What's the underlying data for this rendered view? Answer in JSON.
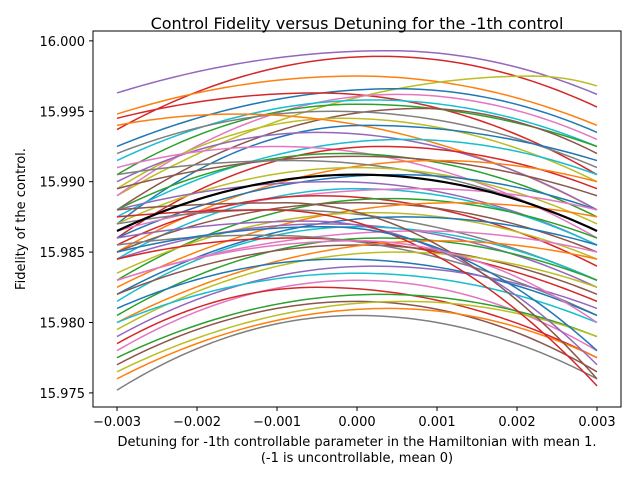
{
  "chart_data": {
    "type": "line",
    "title": "Control Fidelity versus Detuning for the -1th control",
    "xlabel_line1": "Detuning for -1th controllable parameter in the Hamiltonian with mean 1.",
    "xlabel_line2": "(-1 is uncontrollable, mean 0)",
    "ylabel": "Fidelity of the control.",
    "xlim": [
      -0.0033,
      0.0033
    ],
    "ylim": [
      15.974,
      16.0007
    ],
    "x_ticks": [
      -0.003,
      -0.002,
      -0.001,
      0.0,
      0.001,
      0.002,
      0.003
    ],
    "x_tick_labels": [
      "−0.003",
      "−0.002",
      "−0.001",
      "0.000",
      "0.001",
      "0.002",
      "0.003"
    ],
    "y_ticks": [
      15.975,
      15.98,
      15.985,
      15.99,
      15.995,
      16.0
    ],
    "y_tick_labels": [
      "15.975",
      "15.980",
      "15.985",
      "15.990",
      "15.995",
      "16.000"
    ],
    "x_domain": [
      -0.003,
      0.003
    ],
    "grid": false,
    "mean_series": {
      "y_left": 15.9865,
      "peak_x": 0.0,
      "peak_y": 15.9905,
      "y_right": 15.9865,
      "color": "#000000"
    },
    "series": [
      {
        "y_left": 15.9963,
        "peak_x": 0.0004,
        "peak_y": 15.9993,
        "y_right": 15.9962,
        "color": "#9467bd"
      },
      {
        "y_left": 15.9937,
        "peak_x": 0.0003,
        "peak_y": 15.9989,
        "y_right": 15.9953,
        "color": "#d62728"
      },
      {
        "y_left": 15.9948,
        "peak_x": 0.0,
        "peak_y": 15.9975,
        "y_right": 15.994,
        "color": "#ff7f0e"
      },
      {
        "y_left": 15.989,
        "peak_x": 0.0022,
        "peak_y": 15.9975,
        "y_right": 15.9968,
        "color": "#bcbd22"
      },
      {
        "y_left": 15.9925,
        "peak_x": 0.0005,
        "peak_y": 15.9966,
        "y_right": 15.9935,
        "color": "#1f77b4"
      },
      {
        "y_left": 15.9945,
        "peak_x": -0.0005,
        "peak_y": 15.9963,
        "y_right": 15.9905,
        "color": "#d62728"
      },
      {
        "y_left": 15.989,
        "peak_x": 0.0005,
        "peak_y": 15.9962,
        "y_right": 15.993,
        "color": "#e377c2"
      },
      {
        "y_left": 15.9915,
        "peak_x": 0.0002,
        "peak_y": 15.9958,
        "y_right": 15.9925,
        "color": "#17becf"
      },
      {
        "y_left": 15.9905,
        "peak_x": 0.0,
        "peak_y": 15.9955,
        "y_right": 15.9925,
        "color": "#2ca02c"
      },
      {
        "y_left": 15.988,
        "peak_x": 0.0008,
        "peak_y": 15.9952,
        "y_right": 15.992,
        "color": "#8c564b"
      },
      {
        "y_left": 15.992,
        "peak_x": -0.0003,
        "peak_y": 15.995,
        "y_right": 15.991,
        "color": "#7f7f7f"
      },
      {
        "y_left": 15.9895,
        "peak_x": -0.0002,
        "peak_y": 15.9945,
        "y_right": 15.99,
        "color": "#bcbd22"
      },
      {
        "y_left": 15.994,
        "peak_x": -0.0015,
        "peak_y": 15.9948,
        "y_right": 15.988,
        "color": "#ff7f0e"
      },
      {
        "y_left": 15.987,
        "peak_x": 0.0001,
        "peak_y": 15.994,
        "y_right": 15.9915,
        "color": "#1f77b4"
      },
      {
        "y_left": 15.99,
        "peak_x": -0.0005,
        "peak_y": 15.9935,
        "y_right": 15.988,
        "color": "#9467bd"
      },
      {
        "y_left": 15.9875,
        "peak_x": 0.0006,
        "peak_y": 15.993,
        "y_right": 15.9905,
        "color": "#17becf"
      },
      {
        "y_left": 15.991,
        "peak_x": -0.001,
        "peak_y": 15.9925,
        "y_right": 15.986,
        "color": "#e377c2"
      },
      {
        "y_left": 15.986,
        "peak_x": 0.0003,
        "peak_y": 15.9925,
        "y_right": 15.9895,
        "color": "#d62728"
      },
      {
        "y_left": 15.988,
        "peak_x": -0.0002,
        "peak_y": 15.992,
        "y_right": 15.9875,
        "color": "#2ca02c"
      },
      {
        "y_left": 15.9895,
        "peak_x": 0.0,
        "peak_y": 15.9918,
        "y_right": 15.989,
        "color": "#8c564b"
      },
      {
        "y_left": 15.985,
        "peak_x": 0.001,
        "peak_y": 15.9915,
        "y_right": 15.99,
        "color": "#ff7f0e"
      },
      {
        "y_left": 15.9905,
        "peak_x": -0.0008,
        "peak_y": 15.9915,
        "y_right": 15.9865,
        "color": "#7f7f7f"
      },
      {
        "y_left": 15.987,
        "peak_x": 0.0,
        "peak_y": 15.991,
        "y_right": 15.987,
        "color": "#bcbd22"
      },
      {
        "y_left": 15.986,
        "peak_x": 0.0005,
        "peak_y": 15.9905,
        "y_right": 15.988,
        "color": "#1f77b4"
      },
      {
        "y_left": 15.988,
        "peak_x": -0.0003,
        "peak_y": 15.99,
        "y_right": 15.9855,
        "color": "#9467bd"
      },
      {
        "y_left": 15.9845,
        "peak_x": 0.0,
        "peak_y": 15.9895,
        "y_right": 15.9855,
        "color": "#17becf"
      },
      {
        "y_left": 15.9865,
        "peak_x": 0.0008,
        "peak_y": 15.9895,
        "y_right": 15.988,
        "color": "#e377c2"
      },
      {
        "y_left": 15.9855,
        "peak_x": -0.0005,
        "peak_y": 15.989,
        "y_right": 15.984,
        "color": "#d62728"
      },
      {
        "y_left": 15.983,
        "peak_x": 0.0004,
        "peak_y": 15.9888,
        "y_right": 15.986,
        "color": "#2ca02c"
      },
      {
        "y_left": 15.985,
        "peak_x": 0.0,
        "peak_y": 15.9885,
        "y_right": 15.985,
        "color": "#8c564b"
      },
      {
        "y_left": 15.9825,
        "peak_x": 0.0012,
        "peak_y": 15.9885,
        "y_right": 15.9875,
        "color": "#ff7f0e"
      },
      {
        "y_left": 15.987,
        "peak_x": -0.001,
        "peak_y": 15.988,
        "y_right": 15.983,
        "color": "#7f7f7f"
      },
      {
        "y_left": 15.9835,
        "peak_x": 0.0002,
        "peak_y": 15.9878,
        "y_right": 15.9845,
        "color": "#bcbd22"
      },
      {
        "y_left": 15.982,
        "peak_x": 0.0006,
        "peak_y": 15.9875,
        "y_right": 15.9855,
        "color": "#1f77b4"
      },
      {
        "y_left": 15.9845,
        "peak_x": -0.0004,
        "peak_y": 15.987,
        "y_right": 15.9825,
        "color": "#9467bd"
      },
      {
        "y_left": 15.9815,
        "peak_x": 0.0,
        "peak_y": 15.9868,
        "y_right": 15.983,
        "color": "#17becf"
      },
      {
        "y_left": 15.983,
        "peak_x": 0.0008,
        "peak_y": 15.9865,
        "y_right": 15.985,
        "color": "#e377c2"
      },
      {
        "y_left": 15.9845,
        "peak_x": -0.0008,
        "peak_y": 15.986,
        "y_right": 15.9815,
        "color": "#d62728"
      },
      {
        "y_left": 15.9805,
        "peak_x": 0.0003,
        "peak_y": 15.986,
        "y_right": 15.983,
        "color": "#2ca02c"
      },
      {
        "y_left": 15.982,
        "peak_x": 0.0,
        "peak_y": 15.9855,
        "y_right": 15.982,
        "color": "#8c564b"
      },
      {
        "y_left": 15.98,
        "peak_x": 0.001,
        "peak_y": 15.9858,
        "y_right": 15.9845,
        "color": "#ff7f0e"
      },
      {
        "y_left": 15.9855,
        "peak_x": -0.0012,
        "peak_y": 15.9862,
        "y_right": 15.9805,
        "color": "#7f7f7f"
      },
      {
        "y_left": 15.9795,
        "peak_x": 0.0005,
        "peak_y": 15.985,
        "y_right": 15.9825,
        "color": "#bcbd22"
      },
      {
        "y_left": 15.981,
        "peak_x": -0.0002,
        "peak_y": 15.9845,
        "y_right": 15.9805,
        "color": "#1f77b4"
      },
      {
        "y_left": 15.979,
        "peak_x": 0.0002,
        "peak_y": 15.984,
        "y_right": 15.981,
        "color": "#9467bd"
      },
      {
        "y_left": 15.98,
        "peak_x": 0.0,
        "peak_y": 15.9835,
        "y_right": 15.98,
        "color": "#17becf"
      },
      {
        "y_left": 15.978,
        "peak_x": 0.0,
        "peak_y": 15.983,
        "y_right": 15.978,
        "color": "#e377c2"
      },
      {
        "y_left": 15.9785,
        "peak_x": -0.0005,
        "peak_y": 15.9825,
        "y_right": 15.9775,
        "color": "#d62728"
      },
      {
        "y_left": 15.9775,
        "peak_x": 0.0003,
        "peak_y": 15.982,
        "y_right": 15.979,
        "color": "#2ca02c"
      },
      {
        "y_left": 15.977,
        "peak_x": 0.0,
        "peak_y": 15.9815,
        "y_right": 15.9765,
        "color": "#8c564b"
      },
      {
        "y_left": 15.9765,
        "peak_x": 0.0006,
        "peak_y": 15.9815,
        "y_right": 15.979,
        "color": "#bcbd22"
      },
      {
        "y_left": 15.9752,
        "peak_x": 0.0,
        "peak_y": 15.9805,
        "y_right": 15.976,
        "color": "#7f7f7f"
      },
      {
        "y_left": 15.976,
        "peak_x": 0.0004,
        "peak_y": 15.981,
        "y_right": 15.9775,
        "color": "#ff7f0e"
      },
      {
        "y_left": 15.986,
        "peak_x": -0.0006,
        "peak_y": 15.9872,
        "y_right": 15.977,
        "color": "#9467bd"
      },
      {
        "y_left": 15.988,
        "peak_x": -0.0009,
        "peak_y": 15.9885,
        "y_right": 15.976,
        "color": "#8c564b"
      },
      {
        "y_left": 15.9875,
        "peak_x": -0.0011,
        "peak_y": 15.988,
        "y_right": 15.9755,
        "color": "#d62728"
      },
      {
        "y_left": 15.985,
        "peak_x": -0.0004,
        "peak_y": 15.9868,
        "y_right": 15.978,
        "color": "#1f77b4"
      },
      {
        "y_left": 15.983,
        "peak_x": 0.0,
        "peak_y": 15.9858,
        "y_right": 15.98,
        "color": "#e377c2"
      }
    ]
  }
}
